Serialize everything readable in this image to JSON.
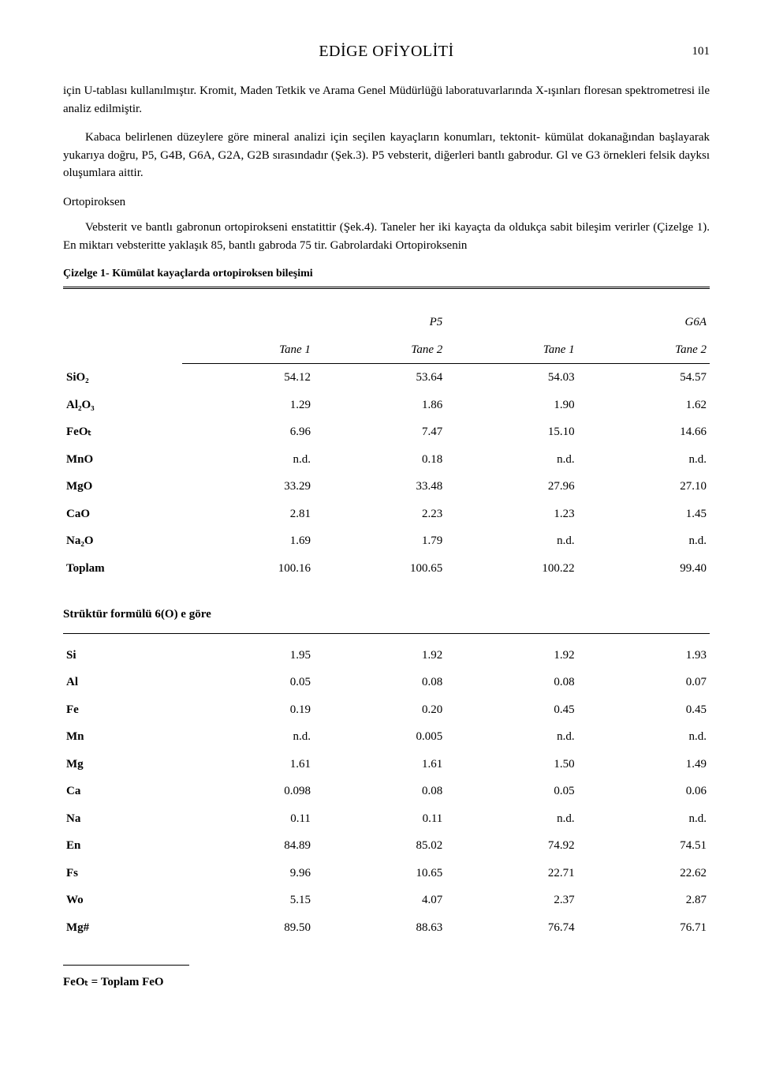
{
  "header": {
    "title": "EDİGE OFİYOLİTİ",
    "page_number": "101"
  },
  "paragraphs": {
    "p1": "için U-tablası kullanılmıştır. Kromit, Maden Tetkik ve Arama Genel Müdürlüğü laboratuvarlarında X-ışınları floresan spektrometresi ile analiz edilmiştir.",
    "p2": "Kabaca belirlenen düzeylere göre mineral analizi için seçilen kayaçların konumları, tektonit- kümülat dokanağından başlayarak yukarıya doğru, P5, G4B, G6A, G2A, G2B sırasındadır (Şek.3). P5 vebsterit, diğerleri bantlı gabrodur. Gl ve G3 örnekleri felsik dayksı oluşumlara aittir.",
    "sec_head": "Ortopiroksen",
    "p3": "Vebsterit ve bantlı gabronun ortopirokseni enstatittir (Şek.4). Taneler her iki kayaçta da oldukça sabit bileşim verirler (Çizelge 1). En miktarı vebsteritte yaklaşık 85, bantlı gabroda 75 tir. Gabrolardaki Ortopiroksenin"
  },
  "table": {
    "caption": "Çizelge 1- Kümülat kayaçlarda ortopiroksen bileşimi",
    "group_heads": [
      "P5",
      "G6A"
    ],
    "col_heads": [
      "Tane 1",
      "Tane 2",
      "Tane 1",
      "Tane 2"
    ],
    "rows_main": [
      {
        "label": "SiO₂",
        "v": [
          "54.12",
          "53.64",
          "54.03",
          "54.57"
        ]
      },
      {
        "label": "Al₂O₃",
        "v": [
          "1.29",
          "1.86",
          "1.90",
          "1.62"
        ]
      },
      {
        "label": "FeOₜ",
        "v": [
          "6.96",
          "7.47",
          "15.10",
          "14.66"
        ]
      },
      {
        "label": "MnO",
        "v": [
          "n.d.",
          "0.18",
          "n.d.",
          "n.d."
        ]
      },
      {
        "label": "MgO",
        "v": [
          "33.29",
          "33.48",
          "27.96",
          "27.10"
        ]
      },
      {
        "label": "CaO",
        "v": [
          "2.81",
          "2.23",
          "1.23",
          "1.45"
        ]
      },
      {
        "label": "Na₂O",
        "v": [
          "1.69",
          "1.79",
          "n.d.",
          "n.d."
        ]
      },
      {
        "label": "Toplam",
        "v": [
          "100.16",
          "100.65",
          "100.22",
          "99.40"
        ]
      }
    ],
    "struct_title": "Strüktür formülü 6(O) e göre",
    "rows_struct": [
      {
        "label": "Si",
        "v": [
          "1.95",
          "1.92",
          "1.92",
          "1.93"
        ]
      },
      {
        "label": "Al",
        "v": [
          "0.05",
          "0.08",
          "0.08",
          "0.07"
        ]
      },
      {
        "label": "Fe",
        "v": [
          "0.19",
          "0.20",
          "0.45",
          "0.45"
        ]
      },
      {
        "label": "Mn",
        "v": [
          "n.d.",
          "0.005",
          "n.d.",
          "n.d."
        ]
      },
      {
        "label": "Mg",
        "v": [
          "1.61",
          "1.61",
          "1.50",
          "1.49"
        ]
      },
      {
        "label": "Ca",
        "v": [
          "0.098",
          "0.08",
          "0.05",
          "0.06"
        ]
      },
      {
        "label": "Na",
        "v": [
          "0.11",
          "0.11",
          "n.d.",
          "n.d."
        ]
      },
      {
        "label": "En",
        "v": [
          "84.89",
          "85.02",
          "74.92",
          "74.51"
        ]
      },
      {
        "label": "Fs",
        "v": [
          "9.96",
          "10.65",
          "22.71",
          "22.62"
        ]
      },
      {
        "label": "Wo",
        "v": [
          "5.15",
          "4.07",
          "2.37",
          "2.87"
        ]
      },
      {
        "label": "Mg#",
        "v": [
          "89.50",
          "88.63",
          "76.74",
          "76.71"
        ]
      }
    ]
  },
  "footnote": "FeOₜ = Toplam FeO"
}
